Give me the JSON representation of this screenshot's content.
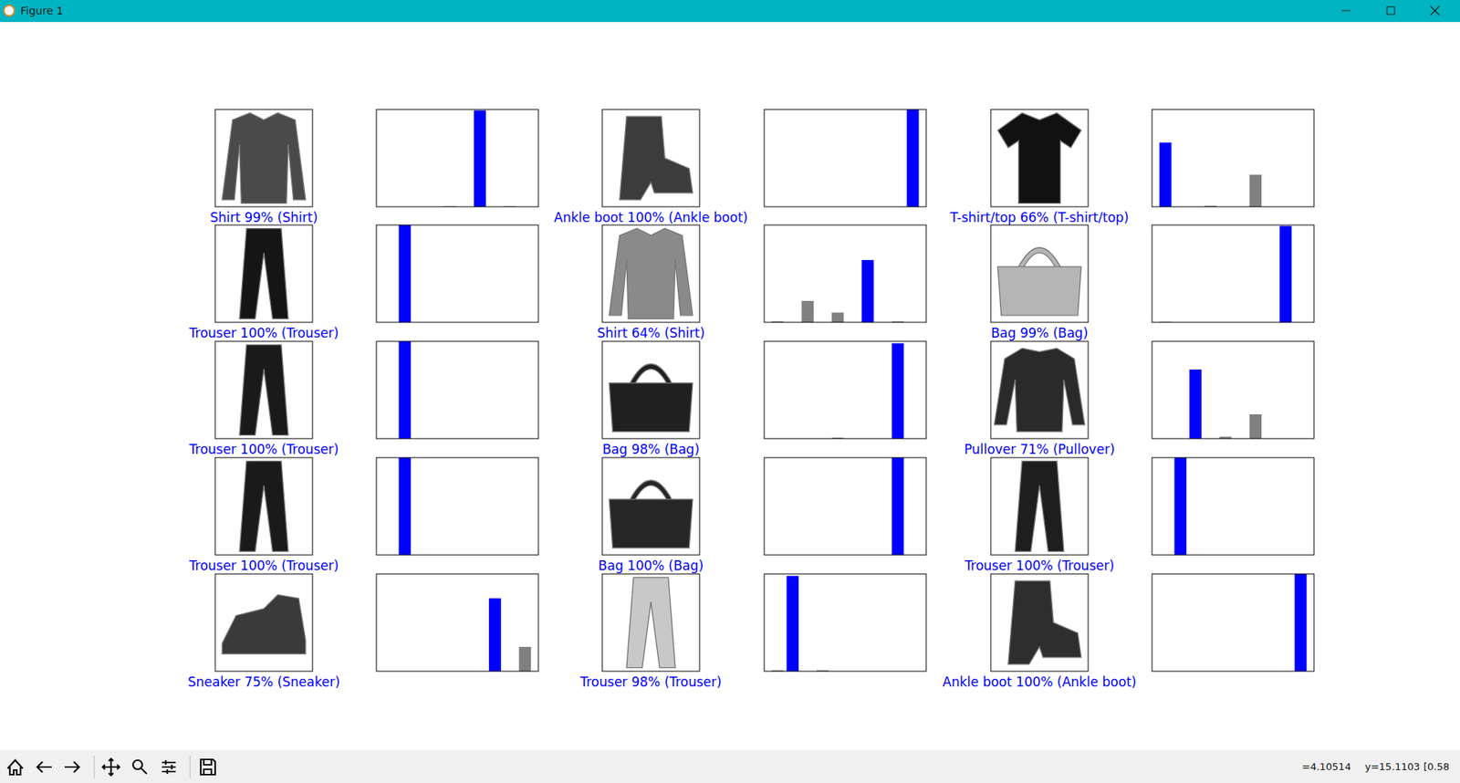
{
  "window": {
    "title": "Figure 1",
    "status": [
      "=4.10514",
      "y=15.1103",
      "[0.58"
    ]
  },
  "chart_data": [
    {
      "type": "image",
      "xlabel": "Shirt 99% (Shirt)",
      "color": "#0000ff",
      "tick_labels": false
    },
    {
      "type": "bar",
      "x": [
        0,
        1,
        2,
        3,
        4,
        5,
        6,
        7,
        8,
        9
      ],
      "values": [
        0,
        0,
        0,
        0,
        0.005,
        0,
        0.99,
        0,
        0.005,
        0
      ],
      "colors": [
        "#808080",
        "#808080",
        "#808080",
        "#808080",
        "#808080",
        "#808080",
        "#0000ff",
        "#808080",
        "#808080",
        "#808080"
      ],
      "xlim": [
        -0.89,
        9.89
      ],
      "ylim": [
        0,
        1
      ],
      "tick_labels": false
    },
    {
      "type": "image",
      "xlabel": "Ankle boot 100% (Ankle boot)",
      "color": "#0000ff",
      "tick_labels": false
    },
    {
      "type": "bar",
      "x": [
        0,
        1,
        2,
        3,
        4,
        5,
        6,
        7,
        8,
        9
      ],
      "values": [
        0,
        0,
        0,
        0,
        0,
        0,
        0,
        0,
        0,
        1.0
      ],
      "colors": [
        "#808080",
        "#808080",
        "#808080",
        "#808080",
        "#808080",
        "#808080",
        "#808080",
        "#808080",
        "#808080",
        "#0000ff"
      ],
      "xlim": [
        -0.89,
        9.89
      ],
      "ylim": [
        0,
        1
      ],
      "tick_labels": false
    },
    {
      "type": "image",
      "xlabel": "T-shirt/top 66% (T-shirt/top)",
      "color": "#0000ff",
      "tick_labels": false
    },
    {
      "type": "bar",
      "x": [
        0,
        1,
        2,
        3,
        4,
        5,
        6,
        7,
        8,
        9
      ],
      "values": [
        0.66,
        0,
        0,
        0.01,
        0,
        0,
        0.33,
        0,
        0,
        0
      ],
      "colors": [
        "#0000ff",
        "#808080",
        "#808080",
        "#808080",
        "#808080",
        "#808080",
        "#808080",
        "#808080",
        "#808080",
        "#808080"
      ],
      "xlim": [
        -0.89,
        9.89
      ],
      "ylim": [
        0,
        1
      ],
      "tick_labels": false
    },
    {
      "type": "image",
      "xlabel": "Trouser 100% (Trouser)",
      "color": "#0000ff",
      "tick_labels": false
    },
    {
      "type": "bar",
      "x": [
        0,
        1,
        2,
        3,
        4,
        5,
        6,
        7,
        8,
        9
      ],
      "values": [
        0,
        1.0,
        0,
        0,
        0,
        0,
        0,
        0,
        0,
        0
      ],
      "colors": [
        "#808080",
        "#0000ff",
        "#808080",
        "#808080",
        "#808080",
        "#808080",
        "#808080",
        "#808080",
        "#808080",
        "#808080"
      ],
      "xlim": [
        -0.89,
        9.89
      ],
      "ylim": [
        0,
        1
      ],
      "tick_labels": false
    },
    {
      "type": "image",
      "xlabel": "Shirt 64% (Shirt)",
      "color": "#0000ff",
      "tick_labels": false
    },
    {
      "type": "bar",
      "x": [
        0,
        1,
        2,
        3,
        4,
        5,
        6,
        7,
        8,
        9
      ],
      "values": [
        0.01,
        0,
        0.22,
        0,
        0.1,
        0,
        0.64,
        0,
        0.01,
        0
      ],
      "colors": [
        "#808080",
        "#808080",
        "#808080",
        "#808080",
        "#808080",
        "#808080",
        "#0000ff",
        "#808080",
        "#808080",
        "#808080"
      ],
      "xlim": [
        -0.89,
        9.89
      ],
      "ylim": [
        0,
        1
      ],
      "tick_labels": false
    },
    {
      "type": "image",
      "xlabel": "Bag 99% (Bag)",
      "color": "#0000ff",
      "tick_labels": false
    },
    {
      "type": "bar",
      "x": [
        0,
        1,
        2,
        3,
        4,
        5,
        6,
        7,
        8,
        9
      ],
      "values": [
        0.005,
        0,
        0,
        0,
        0,
        0,
        0,
        0,
        0.99,
        0
      ],
      "colors": [
        "#808080",
        "#808080",
        "#808080",
        "#808080",
        "#808080",
        "#808080",
        "#808080",
        "#808080",
        "#0000ff",
        "#808080"
      ],
      "xlim": [
        -0.89,
        9.89
      ],
      "ylim": [
        0,
        1
      ],
      "tick_labels": false
    },
    {
      "type": "image",
      "xlabel": "Trouser 100% (Trouser)",
      "color": "#0000ff",
      "tick_labels": false
    },
    {
      "type": "bar",
      "x": [
        0,
        1,
        2,
        3,
        4,
        5,
        6,
        7,
        8,
        9
      ],
      "values": [
        0,
        1.0,
        0,
        0,
        0,
        0,
        0,
        0,
        0,
        0
      ],
      "colors": [
        "#808080",
        "#0000ff",
        "#808080",
        "#808080",
        "#808080",
        "#808080",
        "#808080",
        "#808080",
        "#808080",
        "#808080"
      ],
      "xlim": [
        -0.89,
        9.89
      ],
      "ylim": [
        0,
        1
      ],
      "tick_labels": false
    },
    {
      "type": "image",
      "xlabel": "Bag 98% (Bag)",
      "color": "#0000ff",
      "tick_labels": false
    },
    {
      "type": "bar",
      "x": [
        0,
        1,
        2,
        3,
        4,
        5,
        6,
        7,
        8,
        9
      ],
      "values": [
        0,
        0,
        0,
        0,
        0.01,
        0,
        0,
        0,
        0.98,
        0
      ],
      "colors": [
        "#808080",
        "#808080",
        "#808080",
        "#808080",
        "#808080",
        "#808080",
        "#808080",
        "#808080",
        "#0000ff",
        "#808080"
      ],
      "xlim": [
        -0.89,
        9.89
      ],
      "ylim": [
        0,
        1
      ],
      "tick_labels": false
    },
    {
      "type": "image",
      "xlabel": "Pullover 71% (Pullover)",
      "color": "#0000ff",
      "tick_labels": false
    },
    {
      "type": "bar",
      "x": [
        0,
        1,
        2,
        3,
        4,
        5,
        6,
        7,
        8,
        9
      ],
      "values": [
        0,
        0,
        0.71,
        0,
        0.02,
        0,
        0.25,
        0,
        0,
        0
      ],
      "colors": [
        "#808080",
        "#808080",
        "#0000ff",
        "#808080",
        "#808080",
        "#808080",
        "#808080",
        "#808080",
        "#808080",
        "#808080"
      ],
      "xlim": [
        -0.89,
        9.89
      ],
      "ylim": [
        0,
        1
      ],
      "tick_labels": false
    },
    {
      "type": "image",
      "xlabel": "Trouser 100% (Trouser)",
      "color": "#0000ff",
      "tick_labels": false
    },
    {
      "type": "bar",
      "x": [
        0,
        1,
        2,
        3,
        4,
        5,
        6,
        7,
        8,
        9
      ],
      "values": [
        0,
        1.0,
        0,
        0,
        0,
        0,
        0,
        0,
        0,
        0
      ],
      "colors": [
        "#808080",
        "#0000ff",
        "#808080",
        "#808080",
        "#808080",
        "#808080",
        "#808080",
        "#808080",
        "#808080",
        "#808080"
      ],
      "xlim": [
        -0.89,
        9.89
      ],
      "ylim": [
        0,
        1
      ],
      "tick_labels": false
    },
    {
      "type": "image",
      "xlabel": "Bag 100% (Bag)",
      "color": "#0000ff",
      "tick_labels": false
    },
    {
      "type": "bar",
      "x": [
        0,
        1,
        2,
        3,
        4,
        5,
        6,
        7,
        8,
        9
      ],
      "values": [
        0,
        0,
        0,
        0,
        0,
        0,
        0,
        0,
        1.0,
        0
      ],
      "colors": [
        "#808080",
        "#808080",
        "#808080",
        "#808080",
        "#808080",
        "#808080",
        "#808080",
        "#808080",
        "#0000ff",
        "#808080"
      ],
      "xlim": [
        -0.89,
        9.89
      ],
      "ylim": [
        0,
        1
      ],
      "tick_labels": false
    },
    {
      "type": "image",
      "xlabel": "Trouser 100% (Trouser)",
      "color": "#0000ff",
      "tick_labels": false
    },
    {
      "type": "bar",
      "x": [
        0,
        1,
        2,
        3,
        4,
        5,
        6,
        7,
        8,
        9
      ],
      "values": [
        0,
        1.0,
        0,
        0,
        0,
        0,
        0,
        0,
        0,
        0
      ],
      "colors": [
        "#808080",
        "#0000ff",
        "#808080",
        "#808080",
        "#808080",
        "#808080",
        "#808080",
        "#808080",
        "#808080",
        "#808080"
      ],
      "xlim": [
        -0.89,
        9.89
      ],
      "ylim": [
        0,
        1
      ],
      "tick_labels": false
    },
    {
      "type": "image",
      "xlabel": "Sneaker 75% (Sneaker)",
      "color": "#0000ff",
      "tick_labels": false
    },
    {
      "type": "bar",
      "x": [
        0,
        1,
        2,
        3,
        4,
        5,
        6,
        7,
        8,
        9
      ],
      "values": [
        0,
        0,
        0,
        0,
        0,
        0,
        0,
        0.75,
        0,
        0.25
      ],
      "colors": [
        "#808080",
        "#808080",
        "#808080",
        "#808080",
        "#808080",
        "#808080",
        "#808080",
        "#0000ff",
        "#808080",
        "#808080"
      ],
      "xlim": [
        -0.89,
        9.89
      ],
      "ylim": [
        0,
        1
      ],
      "tick_labels": false
    },
    {
      "type": "image",
      "xlabel": "Trouser 98% (Trouser)",
      "color": "#0000ff",
      "tick_labels": false
    },
    {
      "type": "bar",
      "x": [
        0,
        1,
        2,
        3,
        4,
        5,
        6,
        7,
        8,
        9
      ],
      "values": [
        0.01,
        0.98,
        0,
        0.01,
        0,
        0,
        0,
        0,
        0,
        0
      ],
      "colors": [
        "#808080",
        "#0000ff",
        "#808080",
        "#808080",
        "#808080",
        "#808080",
        "#808080",
        "#808080",
        "#808080",
        "#808080"
      ],
      "xlim": [
        -0.89,
        9.89
      ],
      "ylim": [
        0,
        1
      ],
      "tick_labels": false
    },
    {
      "type": "image",
      "xlabel": "Ankle boot 100% (Ankle boot)",
      "color": "#0000ff",
      "tick_labels": false
    },
    {
      "type": "bar",
      "x": [
        0,
        1,
        2,
        3,
        4,
        5,
        6,
        7,
        8,
        9
      ],
      "values": [
        0,
        0,
        0,
        0,
        0,
        0,
        0,
        0,
        0,
        1.0
      ],
      "colors": [
        "#808080",
        "#808080",
        "#808080",
        "#808080",
        "#808080",
        "#808080",
        "#808080",
        "#808080",
        "#808080",
        "#0000ff"
      ],
      "xlim": [
        -0.89,
        9.89
      ],
      "ylim": [
        0,
        1
      ],
      "tick_labels": false
    }
  ]
}
